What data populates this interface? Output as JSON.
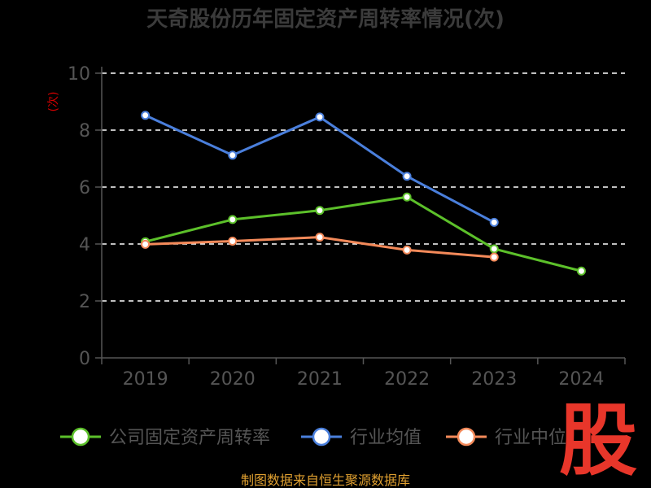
{
  "title": "天奇股份历年固定资产周转率情况(次)",
  "source_text": "制图数据来自恒生聚源数据库",
  "watermark_text": "股",
  "chart_data": {
    "type": "line",
    "title": "天奇股份历年固定资产周转率情况(次)",
    "xlabel": "",
    "ylabel": "(次)",
    "categories": [
      "2019",
      "2020",
      "2021",
      "2022",
      "2023",
      "2024"
    ],
    "ylim": [
      0,
      10
    ],
    "yticks": [
      0,
      2,
      4,
      6,
      8,
      10
    ],
    "grid": true,
    "legend_position": "bottom",
    "series": [
      {
        "name": "公司固定资产周转率",
        "color": "#5cc02a",
        "values": [
          4.08,
          4.86,
          5.18,
          5.65,
          3.83,
          3.05
        ]
      },
      {
        "name": "行业均值",
        "color": "#4a7fdc",
        "values": [
          8.52,
          7.12,
          8.46,
          6.38,
          4.76,
          null
        ]
      },
      {
        "name": "行业中位",
        "color": "#f48a5a",
        "values": [
          3.99,
          4.1,
          4.24,
          3.79,
          3.54,
          null
        ]
      }
    ]
  }
}
